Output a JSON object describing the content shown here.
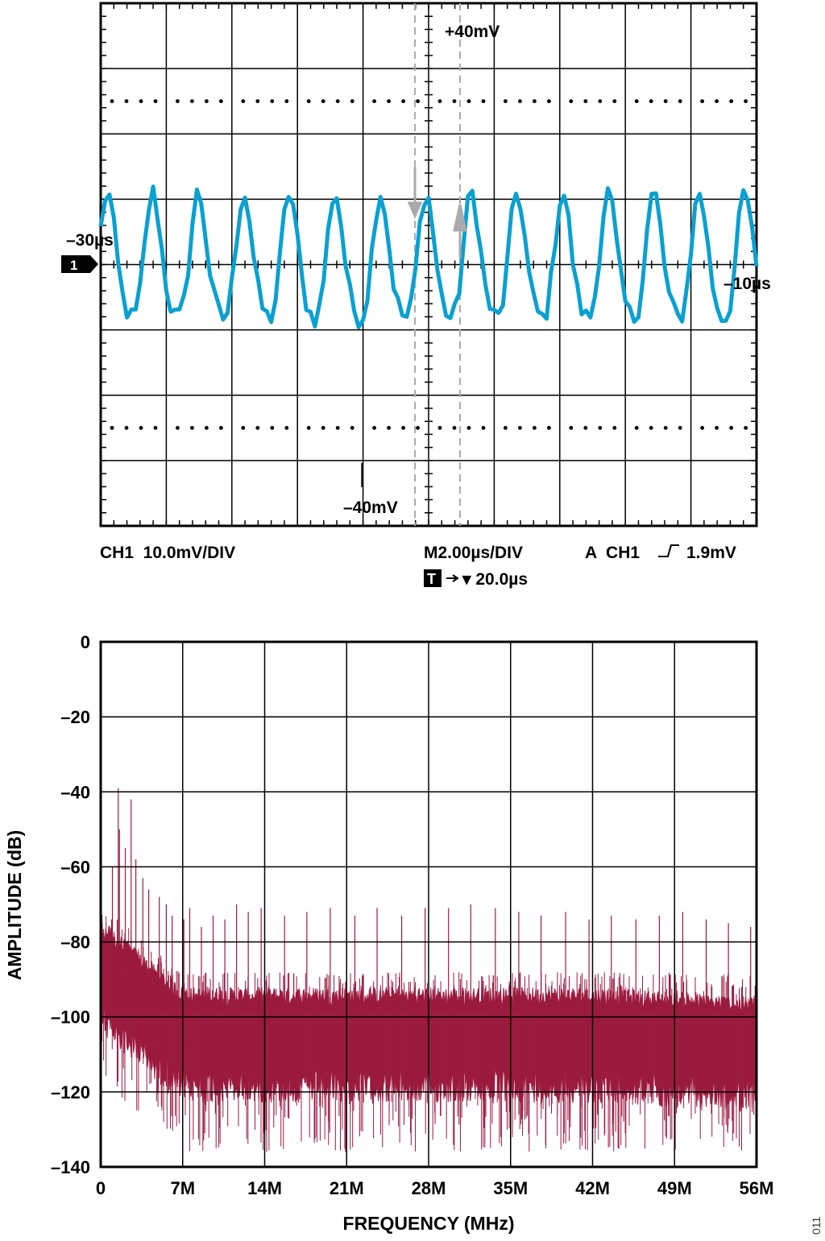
{
  "colors": {
    "scope_trace": "#0aa0d2",
    "fft_trace": "#9b1b3f",
    "grid": "#000000",
    "cursor": "#aaaaaa"
  },
  "chart_data": [
    {
      "type": "line",
      "series": [
        {
          "name": "",
          "samples": 150
        }
      ],
      "xlim": [
        0,
        20
      ],
      "ylim": [
        -40,
        40
      ],
      "divisions": {
        "x": 10,
        "y": 8
      },
      "grid": true,
      "cursors": {
        "top_label": "+40mV",
        "bottom_label": "–40mV",
        "left_time": "–30µs",
        "right_time": "–10µs"
      },
      "channel_marker": "1",
      "status": {
        "ch1_scale": "CH1  10.0mV/DIV",
        "timebase": "M2.00µs/DIV",
        "trigger": "A  CH1",
        "trigger_level": "1.9mV",
        "trigger_box": "T",
        "trigger_position": "▾ 20.0µs"
      }
    },
    {
      "type": "line",
      "x_ticks": [
        "0",
        "7M",
        "14M",
        "21M",
        "28M",
        "35M",
        "42M",
        "49M",
        "56M"
      ],
      "y_ticks": [
        "0",
        "–20",
        "–40",
        "–60",
        "–80",
        "–100",
        "–120",
        "–140"
      ],
      "xlim": [
        0,
        56
      ],
      "ylim": [
        -140,
        0
      ],
      "xlabel": "FREQUENCY (MHz)",
      "ylabel": "AMPLITUDE (dB)",
      "grid": true,
      "noise_floor_db": -104,
      "spurs": [
        {
          "f": 1.0,
          "db": -60
        },
        {
          "f": 1.5,
          "db": -39
        },
        {
          "f": 1.6,
          "db": -50
        },
        {
          "f": 2.1,
          "db": -55
        },
        {
          "f": 2.6,
          "db": -42
        },
        {
          "f": 3.0,
          "db": -58
        },
        {
          "f": 3.6,
          "db": -63
        },
        {
          "f": 4.1,
          "db": -66
        },
        {
          "f": 5.0,
          "db": -68
        },
        {
          "f": 5.6,
          "db": -70
        },
        {
          "f": 6.1,
          "db": -73
        },
        {
          "f": 7.1,
          "db": -74
        },
        {
          "f": 7.6,
          "db": -71
        },
        {
          "f": 8.6,
          "db": -76
        },
        {
          "f": 9.6,
          "db": -73
        },
        {
          "f": 10.6,
          "db": -74
        },
        {
          "f": 11.6,
          "db": -70
        },
        {
          "f": 12.6,
          "db": -72
        },
        {
          "f": 13.7,
          "db": -71
        },
        {
          "f": 15.7,
          "db": -73
        },
        {
          "f": 17.6,
          "db": -72
        },
        {
          "f": 19.6,
          "db": -71
        },
        {
          "f": 21.7,
          "db": -73
        },
        {
          "f": 23.6,
          "db": -71
        },
        {
          "f": 25.7,
          "db": -73
        },
        {
          "f": 27.7,
          "db": -71
        },
        {
          "f": 29.7,
          "db": -71
        },
        {
          "f": 31.6,
          "db": -70
        },
        {
          "f": 33.7,
          "db": -71
        },
        {
          "f": 35.7,
          "db": -72
        },
        {
          "f": 37.6,
          "db": -73
        },
        {
          "f": 39.7,
          "db": -72
        },
        {
          "f": 41.7,
          "db": -74
        },
        {
          "f": 43.6,
          "db": -73
        },
        {
          "f": 45.7,
          "db": -74
        },
        {
          "f": 47.7,
          "db": -73
        },
        {
          "f": 49.7,
          "db": -72
        },
        {
          "f": 51.7,
          "db": -74
        },
        {
          "f": 53.6,
          "db": -75
        },
        {
          "f": 55.5,
          "db": -76
        }
      ]
    }
  ],
  "corner_code": "011"
}
